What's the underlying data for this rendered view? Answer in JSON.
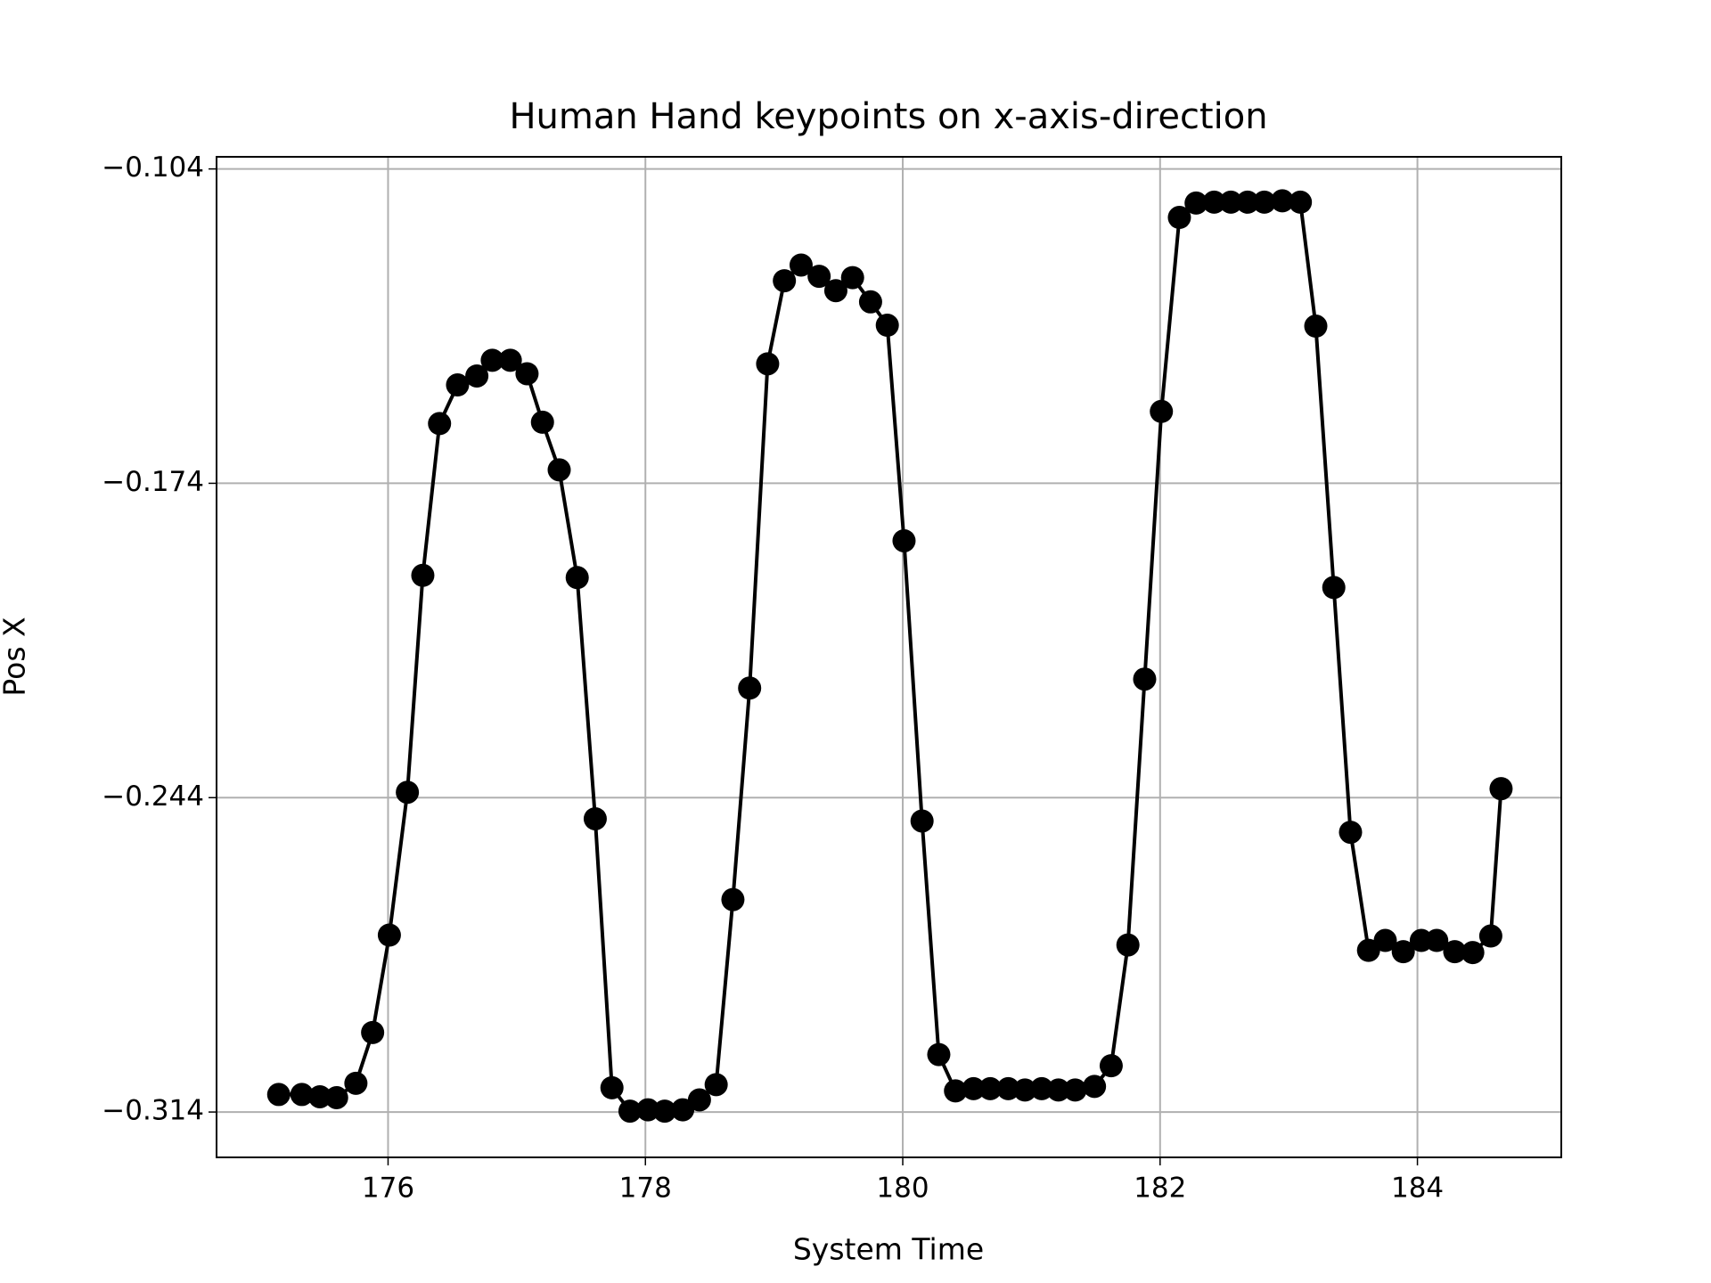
{
  "chart_data": {
    "type": "line",
    "title": "Human Hand keypoints on x-axis-direction",
    "x_label": "System Time",
    "y_label": "Pos X",
    "grid": true,
    "color": "#000000",
    "marker": "o",
    "xlim": [
      174.667,
      185.118
    ],
    "ylim": [
      -0.3241,
      -0.1013
    ],
    "xticks": [
      176,
      178,
      180,
      182,
      184
    ],
    "yticks": [
      {
        "value": -0.104,
        "label": "−0.104"
      },
      {
        "value": -0.174,
        "label": "−0.174"
      },
      {
        "value": -0.244,
        "label": "−0.244"
      },
      {
        "value": -0.314,
        "label": "−0.314"
      }
    ],
    "x": [
      175.15,
      175.33,
      175.47,
      175.6,
      175.75,
      175.88,
      176.01,
      176.15,
      176.27,
      176.4,
      176.54,
      176.69,
      176.81,
      176.95,
      177.08,
      177.2,
      177.33,
      177.47,
      177.61,
      177.74,
      177.88,
      178.02,
      178.15,
      178.29,
      178.42,
      178.55,
      178.68,
      178.81,
      178.95,
      179.08,
      179.21,
      179.35,
      179.48,
      179.61,
      179.75,
      179.88,
      180.01,
      180.15,
      180.28,
      180.41,
      180.55,
      180.68,
      180.82,
      180.95,
      181.08,
      181.21,
      181.34,
      181.49,
      181.62,
      181.75,
      181.88,
      182.01,
      182.15,
      182.28,
      182.42,
      182.55,
      182.68,
      182.81,
      182.95,
      183.09,
      183.21,
      183.35,
      183.48,
      183.62,
      183.75,
      183.89,
      184.03,
      184.15,
      184.29,
      184.43,
      184.57,
      184.65
    ],
    "values": [
      -0.3101,
      -0.3101,
      -0.3106,
      -0.3108,
      -0.3076,
      -0.2963,
      -0.2746,
      -0.2428,
      -0.1945,
      -0.1607,
      -0.1521,
      -0.1501,
      -0.1466,
      -0.1466,
      -0.1496,
      -0.1604,
      -0.171,
      -0.195,
      -0.2487,
      -0.3086,
      -0.3138,
      -0.3135,
      -0.3138,
      -0.3135,
      -0.3113,
      -0.3079,
      -0.2667,
      -0.2196,
      -0.1474,
      -0.1289,
      -0.1254,
      -0.1279,
      -0.1311,
      -0.1282,
      -0.1336,
      -0.1388,
      -0.1868,
      -0.2492,
      -0.3012,
      -0.3093,
      -0.3088,
      -0.3088,
      -0.3088,
      -0.3091,
      -0.3088,
      -0.3091,
      -0.3091,
      -0.3083,
      -0.3037,
      -0.2768,
      -0.2176,
      -0.158,
      -0.1148,
      -0.1116,
      -0.1114,
      -0.1114,
      -0.1114,
      -0.1114,
      -0.1111,
      -0.1114,
      -0.139,
      -0.1972,
      -0.2517,
      -0.278,
      -0.2758,
      -0.2783,
      -0.2758,
      -0.2758,
      -0.2783,
      -0.2785,
      -0.2748,
      -0.242
    ]
  }
}
